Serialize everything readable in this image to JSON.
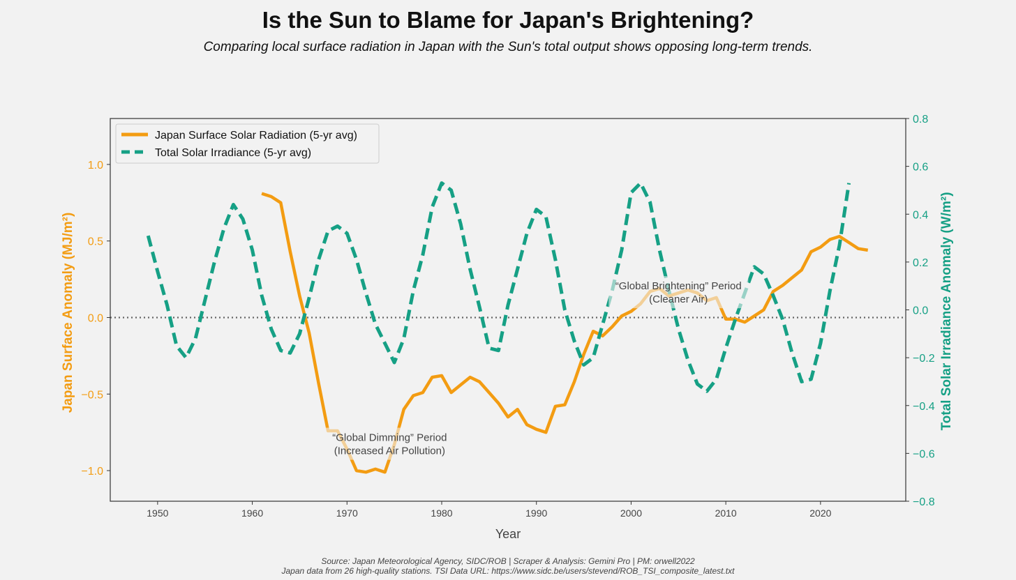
{
  "page": {
    "title": "Is the Sun to Blame for Japan's Brightening?",
    "subtitle": "Comparing local surface radiation in Japan with the Sun's total output shows opposing long-term trends.",
    "source_line1": "Source: Japan Meteorological Agency, SIDC/ROB | Scraper & Analysis: Gemini Pro | PM: orwell2022",
    "source_line2": "Japan data from 26 high-quality stations. TSI Data URL: https://www.sidc.be/users/stevend/ROB_TSI_composite_latest.txt"
  },
  "colors": {
    "japan": "#f39c12",
    "tsi": "#16a085",
    "zero_line": "#666666",
    "axis": "#333333"
  },
  "chart_data": {
    "type": "line",
    "title": "Is the Sun to Blame for Japan's Brightening?",
    "xlabel": "Year",
    "ylabel_left": "Japan Surface Anomaly (MJ/m²)",
    "ylabel_right": "Total Solar Irradiance Anomaly (W/m²)",
    "xlim": [
      1945,
      2029
    ],
    "ylim_left": [
      -1.2,
      1.3
    ],
    "ylim_right": [
      -0.8,
      0.8
    ],
    "xticks": [
      1950,
      1960,
      1970,
      1980,
      1990,
      2000,
      2010,
      2020
    ],
    "yticks_left": [
      {
        "value": 1.0,
        "label": "1.0"
      },
      {
        "value": 0.5,
        "label": "0.5"
      },
      {
        "value": 0.0,
        "label": "0.0"
      },
      {
        "value": -0.5,
        "label": "−0.5"
      },
      {
        "value": -1.0,
        "label": "−1.0"
      }
    ],
    "yticks_right": [
      {
        "value": 0.8,
        "label": "0.8"
      },
      {
        "value": 0.6,
        "label": "0.6"
      },
      {
        "value": 0.4,
        "label": "0.4"
      },
      {
        "value": 0.2,
        "label": "0.2"
      },
      {
        "value": 0.0,
        "label": "0.0"
      },
      {
        "value": -0.2,
        "label": "−0.2"
      },
      {
        "value": -0.4,
        "label": "−0.4"
      },
      {
        "value": -0.6,
        "label": "−0.6"
      },
      {
        "value": -0.8,
        "label": "−0.8"
      }
    ],
    "zero_line": 0,
    "legend_position": "upper-left",
    "series": [
      {
        "name": "Japan Surface Solar Radiation (5-yr avg)",
        "axis": "left",
        "style": "solid",
        "x": [
          1961,
          1962,
          1963,
          1964,
          1965,
          1966,
          1967,
          1968,
          1969,
          1970,
          1971,
          1972,
          1973,
          1974,
          1975,
          1976,
          1977,
          1978,
          1979,
          1980,
          1981,
          1982,
          1983,
          1984,
          1985,
          1986,
          1987,
          1988,
          1989,
          1990,
          1991,
          1992,
          1993,
          1994,
          1995,
          1996,
          1997,
          1998,
          1999,
          2000,
          2001,
          2002,
          2003,
          2004,
          2005,
          2006,
          2007,
          2008,
          2009,
          2010,
          2011,
          2012,
          2013,
          2014,
          2015,
          2016,
          2017,
          2018,
          2019,
          2020,
          2021,
          2022,
          2023,
          2024,
          2025
        ],
        "values": [
          0.81,
          0.79,
          0.75,
          0.43,
          0.14,
          -0.1,
          -0.43,
          -0.74,
          -0.74,
          -0.86,
          -1.0,
          -1.01,
          -0.99,
          -1.01,
          -0.83,
          -0.6,
          -0.51,
          -0.49,
          -0.39,
          -0.38,
          -0.49,
          -0.44,
          -0.39,
          -0.42,
          -0.49,
          -0.56,
          -0.65,
          -0.6,
          -0.7,
          -0.73,
          -0.75,
          -0.58,
          -0.57,
          -0.42,
          -0.24,
          -0.09,
          -0.12,
          -0.06,
          0.01,
          0.04,
          0.09,
          0.17,
          0.19,
          0.14,
          0.16,
          0.18,
          0.16,
          0.11,
          0.13,
          -0.01,
          -0.01,
          -0.03,
          0.01,
          0.05,
          0.17,
          0.21,
          0.26,
          0.31,
          0.43,
          0.46,
          0.51,
          0.53,
          0.49,
          0.45,
          0.44
        ]
      },
      {
        "name": "Total Solar Irradiance (5-yr avg)",
        "axis": "right",
        "style": "dashed",
        "x": [
          1949,
          1950,
          1951,
          1952,
          1953,
          1954,
          1955,
          1956,
          1957,
          1958,
          1959,
          1960,
          1961,
          1962,
          1963,
          1964,
          1965,
          1966,
          1967,
          1968,
          1969,
          1970,
          1971,
          1972,
          1973,
          1974,
          1975,
          1976,
          1977,
          1978,
          1979,
          1980,
          1981,
          1982,
          1983,
          1984,
          1985,
          1986,
          1987,
          1988,
          1989,
          1990,
          1991,
          1992,
          1993,
          1994,
          1995,
          1996,
          1997,
          1998,
          1999,
          2000,
          2001,
          2002,
          2003,
          2004,
          2005,
          2006,
          2007,
          2008,
          2009,
          2010,
          2011,
          2012,
          2013,
          2014,
          2015,
          2016,
          2017,
          2018,
          2019,
          2020,
          2021,
          2022,
          2023
        ],
        "values": [
          0.31,
          0.16,
          0.02,
          -0.15,
          -0.2,
          -0.12,
          0.04,
          0.2,
          0.34,
          0.44,
          0.38,
          0.25,
          0.06,
          -0.08,
          -0.17,
          -0.18,
          -0.1,
          0.05,
          0.21,
          0.33,
          0.35,
          0.32,
          0.21,
          0.07,
          -0.06,
          -0.14,
          -0.22,
          -0.12,
          0.08,
          0.23,
          0.43,
          0.53,
          0.5,
          0.36,
          0.17,
          0.01,
          -0.16,
          -0.17,
          0.02,
          0.17,
          0.32,
          0.42,
          0.39,
          0.21,
          0.0,
          -0.13,
          -0.23,
          -0.2,
          -0.06,
          0.08,
          0.25,
          0.49,
          0.53,
          0.45,
          0.25,
          0.08,
          -0.08,
          -0.21,
          -0.31,
          -0.34,
          -0.29,
          -0.16,
          -0.04,
          0.07,
          0.18,
          0.15,
          0.06,
          -0.04,
          -0.18,
          -0.3,
          -0.29,
          -0.14,
          0.08,
          0.27,
          0.53
        ]
      }
    ],
    "annotations": [
      {
        "x": 1974.5,
        "y": -0.82,
        "line1": "“Global Dimming” Period",
        "line2": "(Increased Air Pollution)"
      },
      {
        "x": 2005,
        "y": 0.17,
        "line1": "“Global Brightening” Period",
        "line2": "(Cleaner Air)"
      }
    ]
  }
}
